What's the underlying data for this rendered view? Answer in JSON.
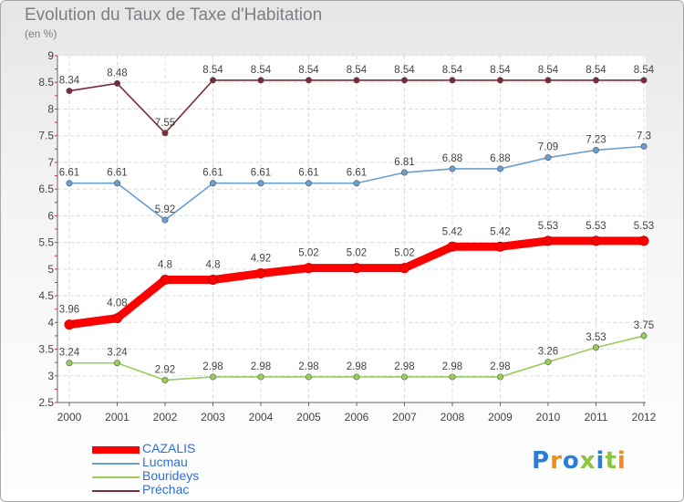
{
  "title": "Evolution du Taux de Taxe d'Habitation",
  "subtitle": "(en %)",
  "logo": "Proxiti",
  "chart_data": {
    "type": "line",
    "x": [
      "2000",
      "2001",
      "2002",
      "2003",
      "2004",
      "2005",
      "2006",
      "2007",
      "2008",
      "2009",
      "2010",
      "2011",
      "2012"
    ],
    "ylim": [
      2.5,
      9
    ],
    "yticks": [
      "2.5",
      "3",
      "3.5",
      "4",
      "4.5",
      "5",
      "5.5",
      "6",
      "6.5",
      "7",
      "7.5",
      "8",
      "8.5",
      "9"
    ],
    "grid": true,
    "legend_position": "bottom-left",
    "series": [
      {
        "name": "CAZALIS",
        "color": "#ff0000",
        "values": [
          3.96,
          4.08,
          4.8,
          4.8,
          4.92,
          5.02,
          5.02,
          5.02,
          5.42,
          5.42,
          5.53,
          5.53,
          5.53
        ],
        "labels": [
          "3.96",
          "4.08",
          "4.8",
          "4.8",
          "4.92",
          "5.02",
          "5.02",
          "5.02",
          "5.42",
          "5.42",
          "5.53",
          "5.53",
          "5.53"
        ]
      },
      {
        "name": "Lucmau",
        "color": "#6a9fcf",
        "values": [
          6.61,
          6.61,
          5.92,
          6.61,
          6.61,
          6.61,
          6.61,
          6.81,
          6.88,
          6.88,
          7.09,
          7.23,
          7.3
        ],
        "labels": [
          "6.61",
          "6.61",
          "5.92",
          "6.61",
          "6.61",
          "6.61",
          "6.61",
          "6.81",
          "6.88",
          "6.88",
          "7.09",
          "7.23",
          "7.3"
        ]
      },
      {
        "name": "Bourideys",
        "color": "#9acd5a",
        "values": [
          3.24,
          3.24,
          2.92,
          2.98,
          2.98,
          2.98,
          2.98,
          2.98,
          2.98,
          2.98,
          3.26,
          3.53,
          3.75
        ],
        "labels": [
          "3.24",
          "3.24",
          "2.92",
          "2.98",
          "2.98",
          "2.98",
          "2.98",
          "2.98",
          "2.98",
          "2.98",
          "3.26",
          "3.53",
          "3.75"
        ]
      },
      {
        "name": "Préchac",
        "color": "#7b2b35",
        "values": [
          8.34,
          8.48,
          7.55,
          8.54,
          8.54,
          8.54,
          8.54,
          8.54,
          8.54,
          8.54,
          8.54,
          8.54,
          8.54
        ],
        "labels": [
          "8.34",
          "8.48",
          "7.55",
          "8.54",
          "8.54",
          "8.54",
          "8.54",
          "8.54",
          "8.54",
          "8.54",
          "8.54",
          "8.54",
          "8.54"
        ]
      }
    ]
  }
}
